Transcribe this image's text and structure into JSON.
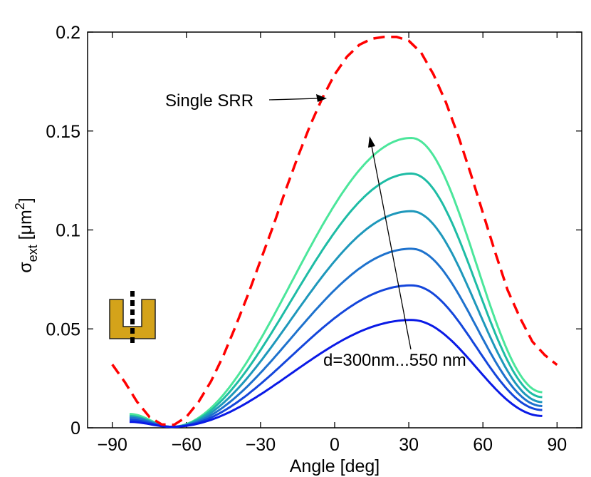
{
  "chart_data": {
    "type": "line",
    "title": "",
    "xlabel": "Angle [deg]",
    "ylabel": {
      "base": "σ",
      "sub": "ext",
      "unit_open": " [μm",
      "sup": "2",
      "unit_close": "]"
    },
    "xlim": [
      -100,
      100
    ],
    "ylim": [
      0,
      0.2
    ],
    "xticks": [
      -90,
      -60,
      -30,
      0,
      30,
      60,
      90
    ],
    "xtick_labels": [
      "−90",
      "−60",
      "−30",
      "0",
      "30",
      "60",
      "90"
    ],
    "yticks": [
      0,
      0.05,
      0.1,
      0.15,
      0.2
    ],
    "ytick_labels": [
      "0",
      "0.05",
      "0.1",
      "0.15",
      "0.2"
    ],
    "grid": false,
    "x": [
      -90,
      -85,
      -80,
      -75,
      -70,
      -65,
      -60,
      -55,
      -50,
      -45,
      -40,
      -35,
      -30,
      -25,
      -20,
      -15,
      -10,
      -5,
      0,
      5,
      10,
      15,
      20,
      25,
      30,
      35,
      40,
      45,
      50,
      55,
      60,
      65,
      70,
      75,
      80,
      85,
      90
    ],
    "series": [
      {
        "style": "dashed",
        "color": "#ff0000",
        "values": [
          0.032,
          0.0232,
          0.0132,
          0.0055,
          0.0017,
          0.0015,
          0.0055,
          0.0132,
          0.0236,
          0.0366,
          0.0516,
          0.0676,
          0.0846,
          0.1016,
          0.1196,
          0.1366,
          0.1526,
          0.1666,
          0.1786,
          0.1876,
          0.1936,
          0.1966,
          0.1976,
          0.1976,
          0.1956,
          0.1896,
          0.1786,
          0.1646,
          0.1476,
          0.1286,
          0.1086,
          0.0886,
          0.0696,
          0.0556,
          0.0436,
          0.0368,
          0.0318
        ]
      }
    ],
    "family": {
      "x_start": -83,
      "x_end": 84,
      "colors": [
        "#0a1ae6",
        "#1446db",
        "#1e72cd",
        "#1e98bb",
        "#1ebca5",
        "#4be69b"
      ],
      "peaks": [
        0.0545,
        0.072,
        0.0905,
        0.1095,
        0.1285,
        0.1465
      ],
      "start_values": [
        0.003,
        0.004,
        0.005,
        0.0055,
        0.006,
        0.007
      ],
      "end_values": [
        0.006,
        0.009,
        0.011,
        0.013,
        0.0155,
        0.018
      ]
    },
    "annotations": [
      {
        "text": "Single SRR"
      },
      {
        "text": "d=300nm...550 nm"
      }
    ],
    "inset_icon": {
      "name": "split-ring-resonator-icon",
      "color": "#d4a31a"
    }
  }
}
